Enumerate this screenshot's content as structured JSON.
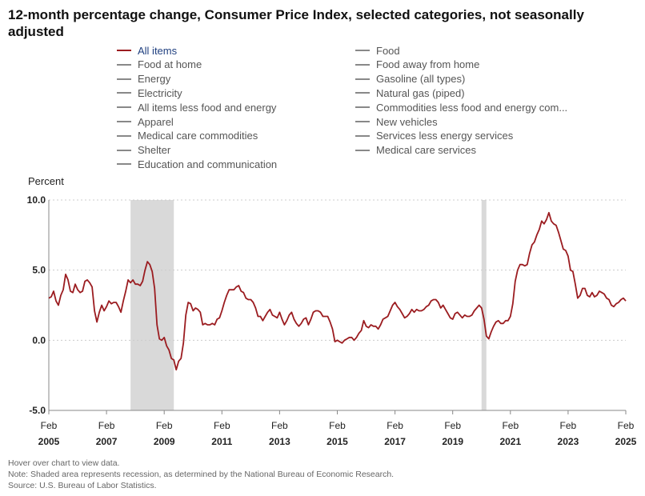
{
  "title": "12-month percentage change, Consumer Price Index, selected categories, not seasonally adjusted",
  "legend": [
    {
      "label": "All items",
      "active": true
    },
    {
      "label": "Food",
      "active": false
    },
    {
      "label": "Food at home",
      "active": false
    },
    {
      "label": "Food away from home",
      "active": false
    },
    {
      "label": "Energy",
      "active": false
    },
    {
      "label": "Gasoline (all types)",
      "active": false
    },
    {
      "label": "Electricity",
      "active": false
    },
    {
      "label": "Natural gas (piped)",
      "active": false
    },
    {
      "label": "All items less food and energy",
      "active": false
    },
    {
      "label": "Commodities less food and energy com...",
      "active": false
    },
    {
      "label": "Apparel",
      "active": false
    },
    {
      "label": "New vehicles",
      "active": false
    },
    {
      "label": "Medical care commodities",
      "active": false
    },
    {
      "label": "Services less energy services",
      "active": false
    },
    {
      "label": "Shelter",
      "active": false
    },
    {
      "label": "Medical care services",
      "active": false
    },
    {
      "label": "Education and communication",
      "active": false
    }
  ],
  "colors": {
    "line": "#9b1c20",
    "recession": "#d9d9d9",
    "axis": "#888888",
    "grid": "#cccccc"
  },
  "notes": [
    "Hover over chart to view data.",
    "Note: Shaded area represents recession, as determined by the National Bureau of Economic Research.",
    "Source: U.S. Bureau of Labor Statistics."
  ],
  "chart_data": {
    "type": "line",
    "ylabel": "Percent",
    "ylim": [
      -5.0,
      10.0
    ],
    "yticks": [
      -5.0,
      0.0,
      5.0,
      10.0
    ],
    "ytick_labels": [
      "-5.0",
      "0.0",
      "5.0",
      "10.0"
    ],
    "xlim": [
      "2005-02",
      "2025-02"
    ],
    "xtick_dates": [
      "2005-02",
      "2007-02",
      "2009-02",
      "2011-02",
      "2013-02",
      "2015-02",
      "2017-02",
      "2019-02",
      "2021-02",
      "2023-02",
      "2025-02"
    ],
    "xtick_month": "Feb",
    "xtick_years": [
      "2005",
      "2007",
      "2009",
      "2011",
      "2013",
      "2015",
      "2017",
      "2019",
      "2021",
      "2023",
      "2025"
    ],
    "grid": "horizontal dotted",
    "recessions": [
      [
        "2007-12",
        "2009-06"
      ],
      [
        "2020-02",
        "2020-04"
      ]
    ],
    "series": [
      {
        "name": "All items",
        "points": [
          [
            "2005-02",
            3.0
          ],
          [
            "2005-03",
            3.1
          ],
          [
            "2005-04",
            3.5
          ],
          [
            "2005-05",
            2.8
          ],
          [
            "2005-06",
            2.5
          ],
          [
            "2005-07",
            3.2
          ],
          [
            "2005-08",
            3.6
          ],
          [
            "2005-09",
            4.7
          ],
          [
            "2005-10",
            4.3
          ],
          [
            "2005-11",
            3.5
          ],
          [
            "2005-12",
            3.4
          ],
          [
            "2006-01",
            4.0
          ],
          [
            "2006-02",
            3.6
          ],
          [
            "2006-03",
            3.4
          ],
          [
            "2006-04",
            3.5
          ],
          [
            "2006-05",
            4.2
          ],
          [
            "2006-06",
            4.3
          ],
          [
            "2006-07",
            4.1
          ],
          [
            "2006-08",
            3.8
          ],
          [
            "2006-09",
            2.1
          ],
          [
            "2006-10",
            1.3
          ],
          [
            "2006-11",
            2.0
          ],
          [
            "2006-12",
            2.5
          ],
          [
            "2007-01",
            2.1
          ],
          [
            "2007-02",
            2.4
          ],
          [
            "2007-03",
            2.8
          ],
          [
            "2007-04",
            2.6
          ],
          [
            "2007-05",
            2.7
          ],
          [
            "2007-06",
            2.7
          ],
          [
            "2007-07",
            2.4
          ],
          [
            "2007-08",
            2.0
          ],
          [
            "2007-09",
            2.8
          ],
          [
            "2007-10",
            3.5
          ],
          [
            "2007-11",
            4.3
          ],
          [
            "2007-12",
            4.1
          ],
          [
            "2008-01",
            4.3
          ],
          [
            "2008-02",
            4.0
          ],
          [
            "2008-03",
            4.0
          ],
          [
            "2008-04",
            3.9
          ],
          [
            "2008-05",
            4.2
          ],
          [
            "2008-06",
            5.0
          ],
          [
            "2008-07",
            5.6
          ],
          [
            "2008-08",
            5.4
          ],
          [
            "2008-09",
            4.9
          ],
          [
            "2008-10",
            3.7
          ],
          [
            "2008-11",
            1.1
          ],
          [
            "2008-12",
            0.1
          ],
          [
            "2009-01",
            0.0
          ],
          [
            "2009-02",
            0.2
          ],
          [
            "2009-03",
            -0.4
          ],
          [
            "2009-04",
            -0.7
          ],
          [
            "2009-05",
            -1.3
          ],
          [
            "2009-06",
            -1.4
          ],
          [
            "2009-07",
            -2.1
          ],
          [
            "2009-08",
            -1.5
          ],
          [
            "2009-09",
            -1.3
          ],
          [
            "2009-10",
            -0.2
          ],
          [
            "2009-11",
            1.8
          ],
          [
            "2009-12",
            2.7
          ],
          [
            "2010-01",
            2.6
          ],
          [
            "2010-02",
            2.1
          ],
          [
            "2010-03",
            2.3
          ],
          [
            "2010-04",
            2.2
          ],
          [
            "2010-05",
            2.0
          ],
          [
            "2010-06",
            1.1
          ],
          [
            "2010-07",
            1.2
          ],
          [
            "2010-08",
            1.1
          ],
          [
            "2010-09",
            1.1
          ],
          [
            "2010-10",
            1.2
          ],
          [
            "2010-11",
            1.1
          ],
          [
            "2010-12",
            1.5
          ],
          [
            "2011-01",
            1.6
          ],
          [
            "2011-02",
            2.1
          ],
          [
            "2011-03",
            2.7
          ],
          [
            "2011-04",
            3.2
          ],
          [
            "2011-05",
            3.6
          ],
          [
            "2011-06",
            3.6
          ],
          [
            "2011-07",
            3.6
          ],
          [
            "2011-08",
            3.8
          ],
          [
            "2011-09",
            3.9
          ],
          [
            "2011-10",
            3.5
          ],
          [
            "2011-11",
            3.4
          ],
          [
            "2011-12",
            3.0
          ],
          [
            "2012-01",
            2.9
          ],
          [
            "2012-02",
            2.9
          ],
          [
            "2012-03",
            2.7
          ],
          [
            "2012-04",
            2.3
          ],
          [
            "2012-05",
            1.7
          ],
          [
            "2012-06",
            1.7
          ],
          [
            "2012-07",
            1.4
          ],
          [
            "2012-08",
            1.7
          ],
          [
            "2012-09",
            2.0
          ],
          [
            "2012-10",
            2.2
          ],
          [
            "2012-11",
            1.8
          ],
          [
            "2012-12",
            1.7
          ],
          [
            "2013-01",
            1.6
          ],
          [
            "2013-02",
            2.0
          ],
          [
            "2013-03",
            1.5
          ],
          [
            "2013-04",
            1.1
          ],
          [
            "2013-05",
            1.4
          ],
          [
            "2013-06",
            1.8
          ],
          [
            "2013-07",
            2.0
          ],
          [
            "2013-08",
            1.5
          ],
          [
            "2013-09",
            1.2
          ],
          [
            "2013-10",
            1.0
          ],
          [
            "2013-11",
            1.2
          ],
          [
            "2013-12",
            1.5
          ],
          [
            "2014-01",
            1.6
          ],
          [
            "2014-02",
            1.1
          ],
          [
            "2014-03",
            1.5
          ],
          [
            "2014-04",
            2.0
          ],
          [
            "2014-05",
            2.1
          ],
          [
            "2014-06",
            2.1
          ],
          [
            "2014-07",
            2.0
          ],
          [
            "2014-08",
            1.7
          ],
          [
            "2014-09",
            1.7
          ],
          [
            "2014-10",
            1.7
          ],
          [
            "2014-11",
            1.3
          ],
          [
            "2014-12",
            0.8
          ],
          [
            "2015-01",
            -0.1
          ],
          [
            "2015-02",
            0.0
          ],
          [
            "2015-03",
            -0.1
          ],
          [
            "2015-04",
            -0.2
          ],
          [
            "2015-05",
            0.0
          ],
          [
            "2015-06",
            0.1
          ],
          [
            "2015-07",
            0.2
          ],
          [
            "2015-08",
            0.2
          ],
          [
            "2015-09",
            0.0
          ],
          [
            "2015-10",
            0.2
          ],
          [
            "2015-11",
            0.5
          ],
          [
            "2015-12",
            0.7
          ],
          [
            "2016-01",
            1.4
          ],
          [
            "2016-02",
            1.0
          ],
          [
            "2016-03",
            0.9
          ],
          [
            "2016-04",
            1.1
          ],
          [
            "2016-05",
            1.0
          ],
          [
            "2016-06",
            1.0
          ],
          [
            "2016-07",
            0.8
          ],
          [
            "2016-08",
            1.1
          ],
          [
            "2016-09",
            1.5
          ],
          [
            "2016-10",
            1.6
          ],
          [
            "2016-11",
            1.7
          ],
          [
            "2016-12",
            2.1
          ],
          [
            "2017-01",
            2.5
          ],
          [
            "2017-02",
            2.7
          ],
          [
            "2017-03",
            2.4
          ],
          [
            "2017-04",
            2.2
          ],
          [
            "2017-05",
            1.9
          ],
          [
            "2017-06",
            1.6
          ],
          [
            "2017-07",
            1.7
          ],
          [
            "2017-08",
            1.9
          ],
          [
            "2017-09",
            2.2
          ],
          [
            "2017-10",
            2.0
          ],
          [
            "2017-11",
            2.2
          ],
          [
            "2017-12",
            2.1
          ],
          [
            "2018-01",
            2.1
          ],
          [
            "2018-02",
            2.2
          ],
          [
            "2018-03",
            2.4
          ],
          [
            "2018-04",
            2.5
          ],
          [
            "2018-05",
            2.8
          ],
          [
            "2018-06",
            2.9
          ],
          [
            "2018-07",
            2.9
          ],
          [
            "2018-08",
            2.7
          ],
          [
            "2018-09",
            2.3
          ],
          [
            "2018-10",
            2.5
          ],
          [
            "2018-11",
            2.2
          ],
          [
            "2018-12",
            1.9
          ],
          [
            "2019-01",
            1.6
          ],
          [
            "2019-02",
            1.5
          ],
          [
            "2019-03",
            1.9
          ],
          [
            "2019-04",
            2.0
          ],
          [
            "2019-05",
            1.8
          ],
          [
            "2019-06",
            1.6
          ],
          [
            "2019-07",
            1.8
          ],
          [
            "2019-08",
            1.7
          ],
          [
            "2019-09",
            1.7
          ],
          [
            "2019-10",
            1.8
          ],
          [
            "2019-11",
            2.1
          ],
          [
            "2019-12",
            2.3
          ],
          [
            "2020-01",
            2.5
          ],
          [
            "2020-02",
            2.3
          ],
          [
            "2020-03",
            1.5
          ],
          [
            "2020-04",
            0.3
          ],
          [
            "2020-05",
            0.1
          ],
          [
            "2020-06",
            0.6
          ],
          [
            "2020-07",
            1.0
          ],
          [
            "2020-08",
            1.3
          ],
          [
            "2020-09",
            1.4
          ],
          [
            "2020-10",
            1.2
          ],
          [
            "2020-11",
            1.2
          ],
          [
            "2020-12",
            1.4
          ],
          [
            "2021-01",
            1.4
          ],
          [
            "2021-02",
            1.7
          ],
          [
            "2021-03",
            2.6
          ],
          [
            "2021-04",
            4.2
          ],
          [
            "2021-05",
            5.0
          ],
          [
            "2021-06",
            5.4
          ],
          [
            "2021-07",
            5.4
          ],
          [
            "2021-08",
            5.3
          ],
          [
            "2021-09",
            5.4
          ],
          [
            "2021-10",
            6.2
          ],
          [
            "2021-11",
            6.8
          ],
          [
            "2021-12",
            7.0
          ],
          [
            "2022-01",
            7.5
          ],
          [
            "2022-02",
            7.9
          ],
          [
            "2022-03",
            8.5
          ],
          [
            "2022-04",
            8.3
          ],
          [
            "2022-05",
            8.6
          ],
          [
            "2022-06",
            9.1
          ],
          [
            "2022-07",
            8.5
          ],
          [
            "2022-08",
            8.3
          ],
          [
            "2022-09",
            8.2
          ],
          [
            "2022-10",
            7.7
          ],
          [
            "2022-11",
            7.1
          ],
          [
            "2022-12",
            6.5
          ],
          [
            "2023-01",
            6.4
          ],
          [
            "2023-02",
            6.0
          ],
          [
            "2023-03",
            5.0
          ],
          [
            "2023-04",
            4.9
          ],
          [
            "2023-05",
            4.0
          ],
          [
            "2023-06",
            3.0
          ],
          [
            "2023-07",
            3.2
          ],
          [
            "2023-08",
            3.7
          ],
          [
            "2023-09",
            3.7
          ],
          [
            "2023-10",
            3.2
          ],
          [
            "2023-11",
            3.1
          ],
          [
            "2023-12",
            3.4
          ],
          [
            "2024-01",
            3.1
          ],
          [
            "2024-02",
            3.2
          ],
          [
            "2024-03",
            3.5
          ],
          [
            "2024-04",
            3.4
          ],
          [
            "2024-05",
            3.3
          ],
          [
            "2024-06",
            3.0
          ],
          [
            "2024-07",
            2.9
          ],
          [
            "2024-08",
            2.5
          ],
          [
            "2024-09",
            2.4
          ],
          [
            "2024-10",
            2.6
          ],
          [
            "2024-11",
            2.7
          ],
          [
            "2024-12",
            2.9
          ],
          [
            "2025-01",
            3.0
          ],
          [
            "2025-02",
            2.8
          ]
        ]
      }
    ]
  }
}
